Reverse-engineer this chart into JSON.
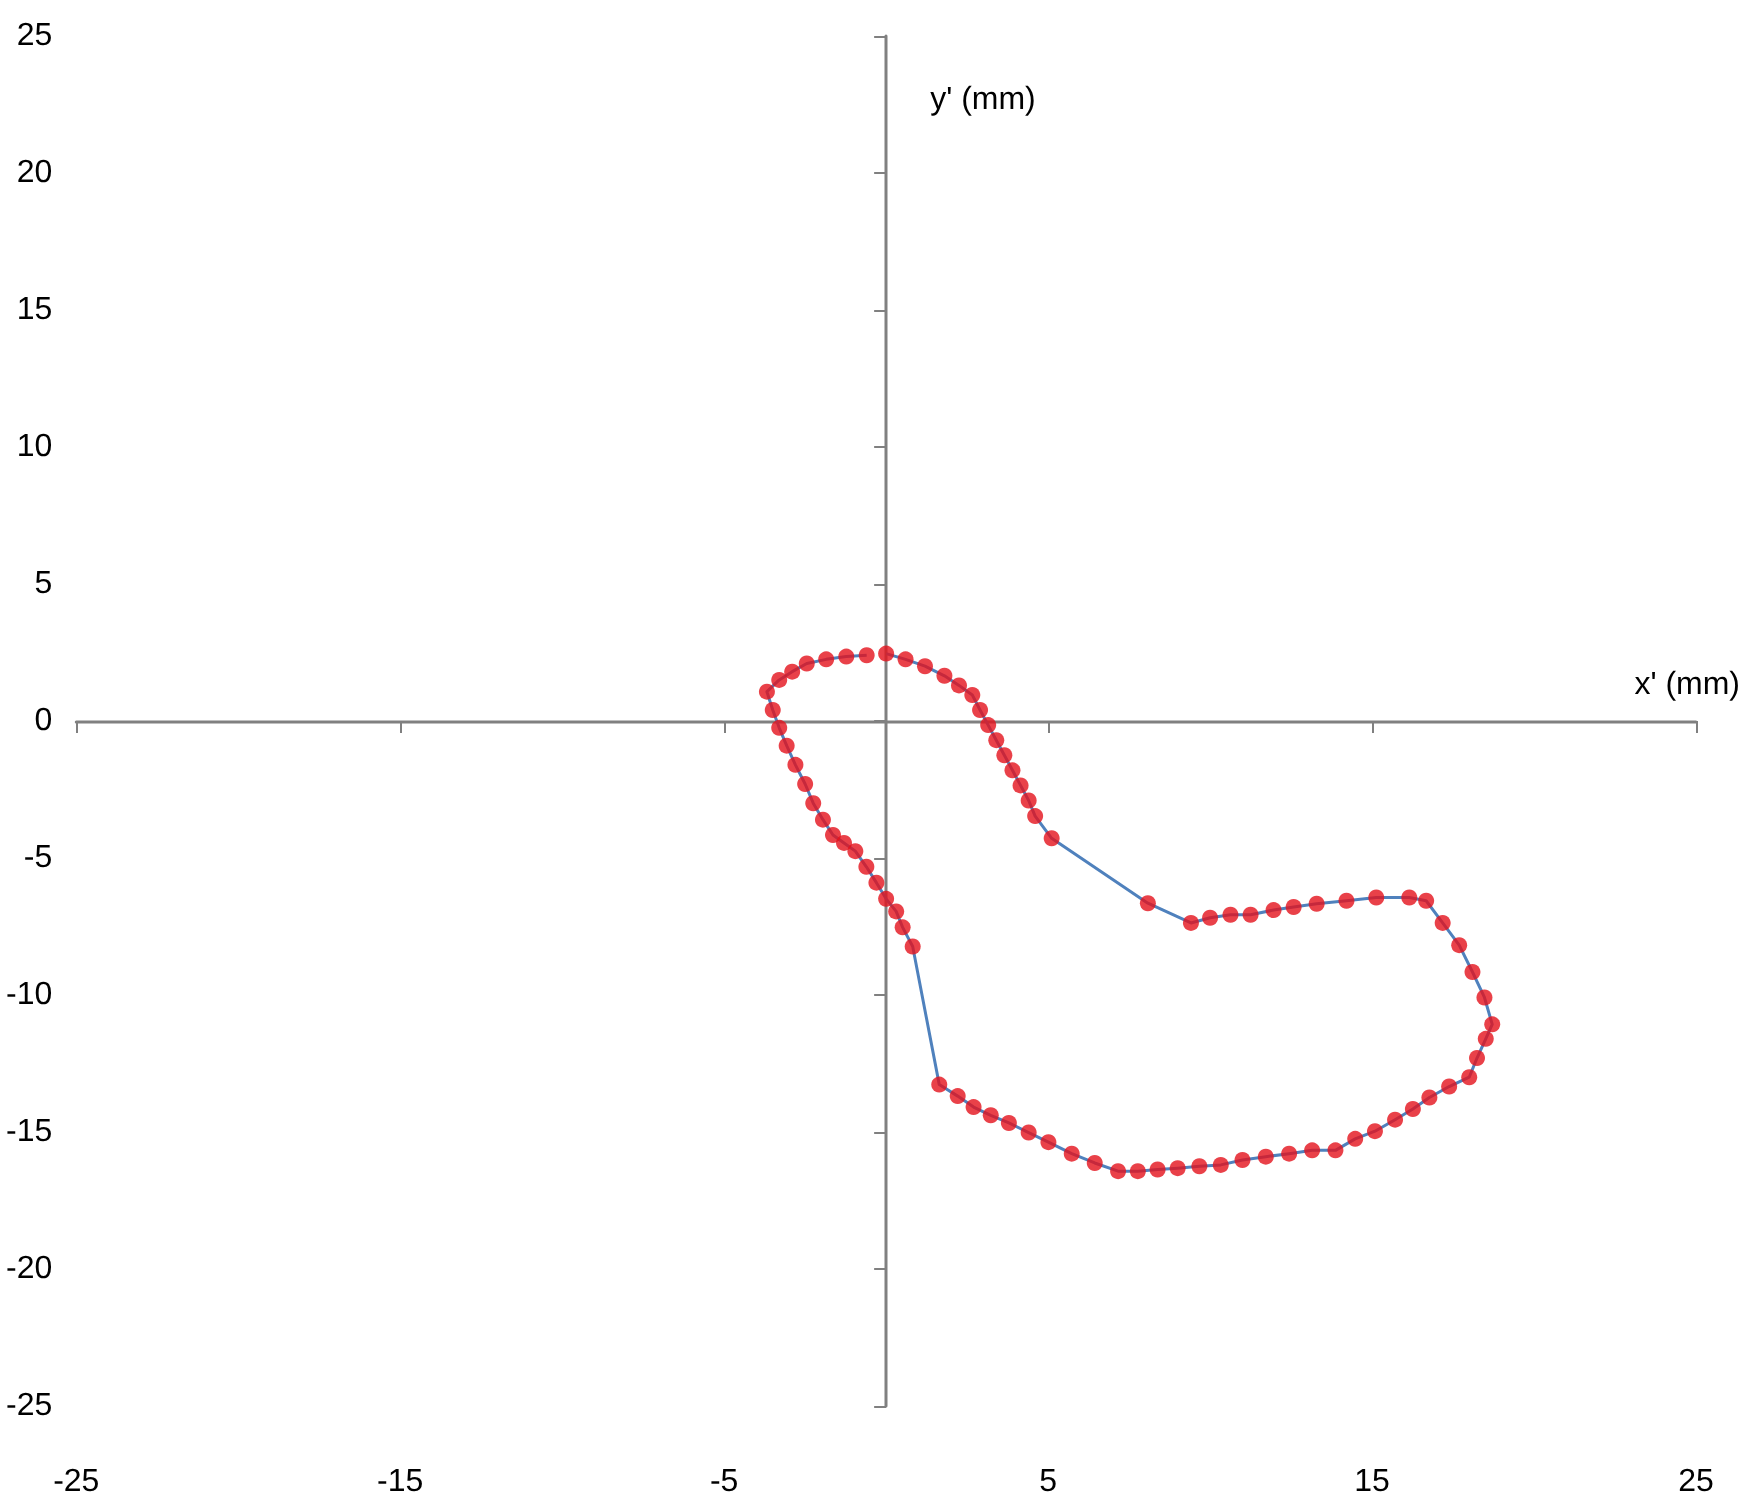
{
  "chart_data": {
    "type": "line",
    "xlabel": "x' (mm)",
    "ylabel": "y' (mm)",
    "xlim": [
      -25,
      25
    ],
    "ylim": [
      -25,
      25
    ],
    "xticks": [
      -25,
      -15,
      -5,
      5,
      15,
      25
    ],
    "yticks": [
      -25,
      -20,
      -15,
      -10,
      -5,
      0,
      5,
      10,
      15,
      20,
      25
    ],
    "marker": "circle",
    "series": [
      {
        "color": "#4f81bd",
        "marker": "none",
        "x": [
          0,
          0.6,
          1.2,
          1.8,
          2.25,
          2.66,
          2.9,
          3.15,
          3.4,
          3.65,
          3.9,
          4.15,
          4.4,
          4.6,
          5.11,
          8.08,
          9.41,
          10.0,
          10.63,
          11.25,
          11.96,
          12.58,
          13.29,
          14.21,
          15.13,
          16.15,
          16.67,
          17.18,
          17.69,
          18.1,
          18.47,
          18.71,
          18.51,
          18.24,
          18.0,
          17.38,
          16.77,
          16.26,
          15.71,
          15.09,
          14.48,
          13.87,
          13.15,
          12.44,
          11.72,
          11.0,
          10.33,
          9.67,
          9.0,
          8.38,
          7.77,
          7.16,
          6.44,
          5.73,
          5.01,
          4.4,
          3.79,
          3.23,
          2.7,
          2.21,
          1.64,
          0.82,
          0.51,
          0.31,
          0,
          -0.3,
          -0.61,
          -0.95,
          -1.3,
          -1.64,
          -1.95,
          -2.25,
          -2.5,
          -2.8,
          -3.07,
          -3.3,
          -3.5,
          -3.68,
          -3.3,
          -2.9,
          -2.45,
          -1.85,
          -1.23,
          -0.6
        ],
        "values": [
          2.46,
          2.25,
          2.0,
          1.65,
          1.3,
          0.95,
          0.4,
          -0.15,
          -0.7,
          -1.25,
          -1.8,
          -2.35,
          -2.9,
          -3.47,
          -4.28,
          -6.65,
          -7.37,
          -7.18,
          -7.07,
          -7.07,
          -6.9,
          -6.79,
          -6.67,
          -6.56,
          -6.44,
          -6.44,
          -6.56,
          -7.37,
          -8.18,
          -9.16,
          -10.09,
          -11.07,
          -11.6,
          -12.3,
          -13.0,
          -13.34,
          -13.74,
          -14.16,
          -14.55,
          -14.97,
          -15.25,
          -15.67,
          -15.67,
          -15.79,
          -15.9,
          -16.02,
          -16.2,
          -16.25,
          -16.32,
          -16.37,
          -16.43,
          -16.43,
          -16.13,
          -15.79,
          -15.37,
          -15.02,
          -14.67,
          -14.39,
          -14.09,
          -13.69,
          -13.27,
          -8.23,
          -7.53,
          -6.95,
          -6.49,
          -5.9,
          -5.32,
          -4.75,
          -4.45,
          -4.16,
          -3.6,
          -3.0,
          -2.3,
          -1.6,
          -0.9,
          -0.25,
          0.4,
          1.07,
          1.5,
          1.8,
          2.1,
          2.25,
          2.35,
          2.4
        ]
      },
      {
        "type": "scatter",
        "color": "#e3121b",
        "x": [
          0,
          0.6,
          1.2,
          1.8,
          2.25,
          2.66,
          2.9,
          3.15,
          3.4,
          3.65,
          3.9,
          4.15,
          4.4,
          4.6,
          5.11,
          8.08,
          9.41,
          10.0,
          10.63,
          11.25,
          11.96,
          12.58,
          13.29,
          14.21,
          15.13,
          16.15,
          16.67,
          17.18,
          17.69,
          18.1,
          18.47,
          18.71,
          18.51,
          18.24,
          18.0,
          17.38,
          16.77,
          16.26,
          15.71,
          15.09,
          14.48,
          13.87,
          13.15,
          12.44,
          11.72,
          11.0,
          10.33,
          9.67,
          9.0,
          8.38,
          7.77,
          7.16,
          6.44,
          5.73,
          5.01,
          4.4,
          3.79,
          3.23,
          2.7,
          2.21,
          1.64,
          0.82,
          0.51,
          0.31,
          0,
          -0.3,
          -0.61,
          -0.95,
          -1.3,
          -1.64,
          -1.95,
          -2.25,
          -2.5,
          -2.8,
          -3.07,
          -3.3,
          -3.5,
          -3.68,
          -3.3,
          -2.9,
          -2.45,
          -1.85,
          -1.23,
          -0.6
        ],
        "values": [
          2.46,
          2.25,
          2.0,
          1.65,
          1.3,
          0.95,
          0.4,
          -0.15,
          -0.7,
          -1.25,
          -1.8,
          -2.35,
          -2.9,
          -3.47,
          -4.28,
          -6.65,
          -7.37,
          -7.18,
          -7.07,
          -7.07,
          -6.9,
          -6.79,
          -6.67,
          -6.56,
          -6.44,
          -6.44,
          -6.56,
          -7.37,
          -8.18,
          -9.16,
          -10.09,
          -11.07,
          -11.6,
          -12.3,
          -13.0,
          -13.34,
          -13.74,
          -14.16,
          -14.55,
          -14.97,
          -15.25,
          -15.67,
          -15.67,
          -15.79,
          -15.9,
          -16.02,
          -16.2,
          -16.25,
          -16.32,
          -16.37,
          -16.43,
          -16.43,
          -16.13,
          -15.79,
          -15.37,
          -15.02,
          -14.67,
          -14.39,
          -14.09,
          -13.69,
          -13.27,
          -8.23,
          -7.53,
          -6.95,
          -6.49,
          -5.9,
          -5.32,
          -4.75,
          -4.45,
          -4.16,
          -3.6,
          -3.0,
          -2.3,
          -1.6,
          -0.9,
          -0.25,
          0.4,
          1.07,
          1.5,
          1.8,
          2.1,
          2.25,
          2.35,
          2.4
        ]
      }
    ]
  }
}
